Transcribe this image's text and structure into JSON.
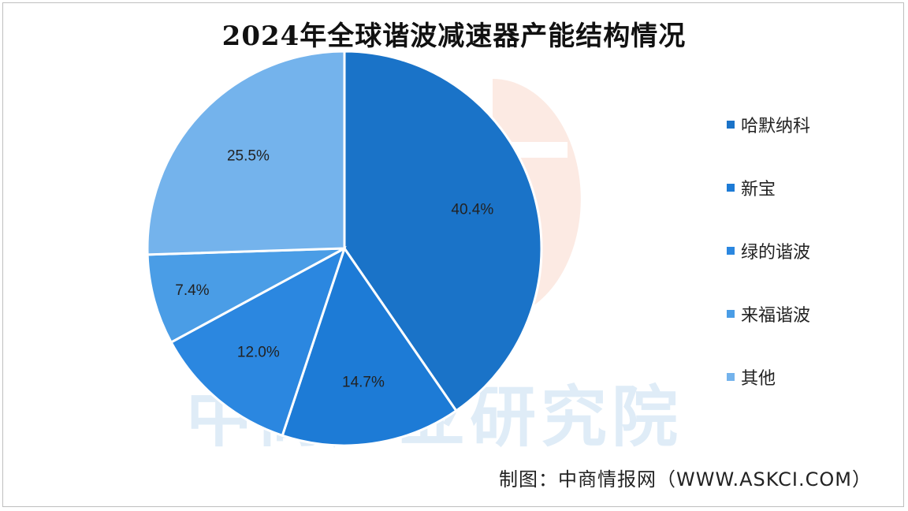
{
  "chart_data": {
    "type": "pie",
    "title": "2024年全球谐波减速器产能结构情况",
    "categories": [
      "哈默纳科",
      "新宝",
      "绿的谐波",
      "来福谐波",
      "其他"
    ],
    "values": [
      40.4,
      14.7,
      12.0,
      7.4,
      25.5
    ],
    "value_labels": [
      "40.4%",
      "14.7%",
      "12.0%",
      "7.4%",
      "25.5%"
    ],
    "colors": [
      "#1a73c8",
      "#1d7bd6",
      "#2b87e0",
      "#4a9de6",
      "#74b3ec"
    ],
    "legend_position": "right"
  },
  "watermark": "中商产业研究院",
  "source": "制图：中商情报网（WWW.ASKCI.COM）"
}
